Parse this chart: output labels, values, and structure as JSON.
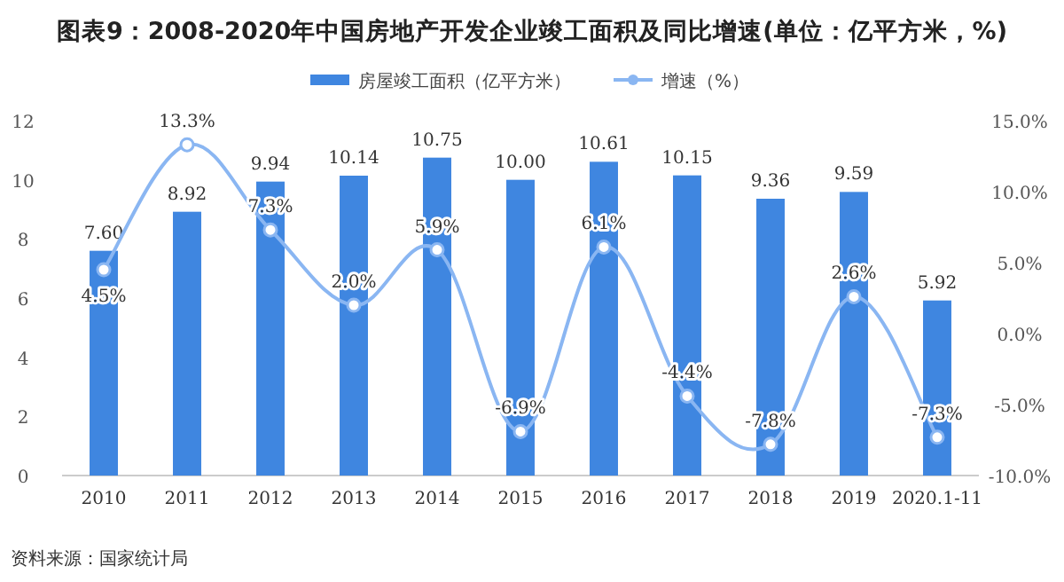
{
  "chart_data": {
    "type": "bar",
    "title": "图表9：2008-2020年中国房地产开发企业竣工面积及同比增速(单位：亿平方米，%)",
    "categories": [
      "2010",
      "2011",
      "2012",
      "2013",
      "2014",
      "2015",
      "2016",
      "2017",
      "2018",
      "2019",
      "2020.1-11"
    ],
    "series": [
      {
        "name": "房屋竣工面积（亿平方米）",
        "color": "#3f86e0",
        "values": [
          7.6,
          8.92,
          9.94,
          10.14,
          10.75,
          10.0,
          10.61,
          10.15,
          9.36,
          9.59,
          5.92
        ],
        "value_labels": [
          "7.60",
          "8.92",
          "9.94",
          "10.14",
          "10.75",
          "10.00",
          "10.61",
          "10.15",
          "9.36",
          "9.59",
          "5.92"
        ]
      },
      {
        "name": "增速（%）",
        "type": "line",
        "axis": "y2",
        "color": "#8ab6f2",
        "marker": "circle",
        "values": [
          4.5,
          13.3,
          7.3,
          2.0,
          5.9,
          -6.9,
          6.1,
          -4.4,
          -7.8,
          2.6,
          -7.3
        ],
        "value_labels": [
          "4.5%",
          "13.3%",
          "7.3%",
          "2.0%",
          "5.9%",
          "-6.9%",
          "6.1%",
          "-4.4%",
          "-7.8%",
          "2.6%",
          "-7.3%"
        ]
      }
    ],
    "ylim": [
      0,
      12
    ],
    "yticks": [
      0,
      2,
      4,
      6,
      8,
      10,
      12
    ],
    "y2lim": [
      -10,
      15
    ],
    "y2ticks": [
      {
        "value": -10,
        "label": "-10.0%"
      },
      {
        "value": -5,
        "label": "-5.0%"
      },
      {
        "value": 0,
        "label": "0.0%"
      },
      {
        "value": 5,
        "label": "5.0%"
      },
      {
        "value": 10,
        "label": "10.0%"
      },
      {
        "value": 15,
        "label": "15.0%"
      }
    ],
    "legend": "top",
    "grid": false,
    "annotations": [
      "资料来源：国家统计局"
    ]
  }
}
